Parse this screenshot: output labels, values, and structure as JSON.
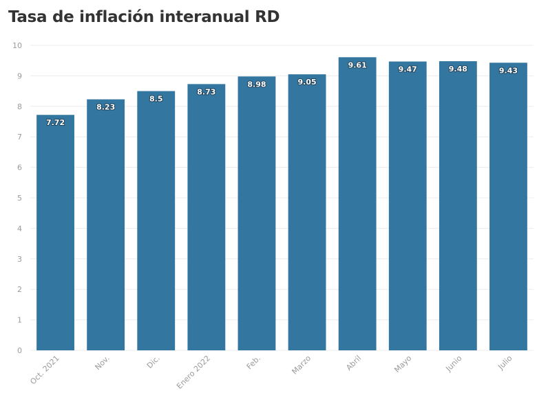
{
  "title": "Tasa de inflación interanual RD",
  "chart_data": {
    "type": "bar",
    "title": "Tasa de inflación interanual RD",
    "categories": [
      "Oct. 2021",
      "Nov.",
      "Dic.",
      "Enero 2022",
      "Feb.",
      "Marzo",
      "Abril",
      "Mayo",
      "Junio",
      "Julio"
    ],
    "values": [
      7.72,
      8.23,
      8.5,
      8.73,
      8.98,
      9.05,
      9.61,
      9.47,
      9.48,
      9.43
    ],
    "value_labels": [
      "7.72",
      "8.23",
      "8.5",
      "8.73",
      "8.98",
      "9.05",
      "9.61",
      "9.47",
      "9.48",
      "9.43"
    ],
    "ylim": [
      0,
      10
    ],
    "yticks": [
      "0",
      "1",
      "2",
      "3",
      "4",
      "5",
      "6",
      "7",
      "8",
      "9",
      "10"
    ],
    "xlabel": "",
    "ylabel": "",
    "grid": true,
    "legend": "none",
    "bar_color": "#33769f"
  }
}
